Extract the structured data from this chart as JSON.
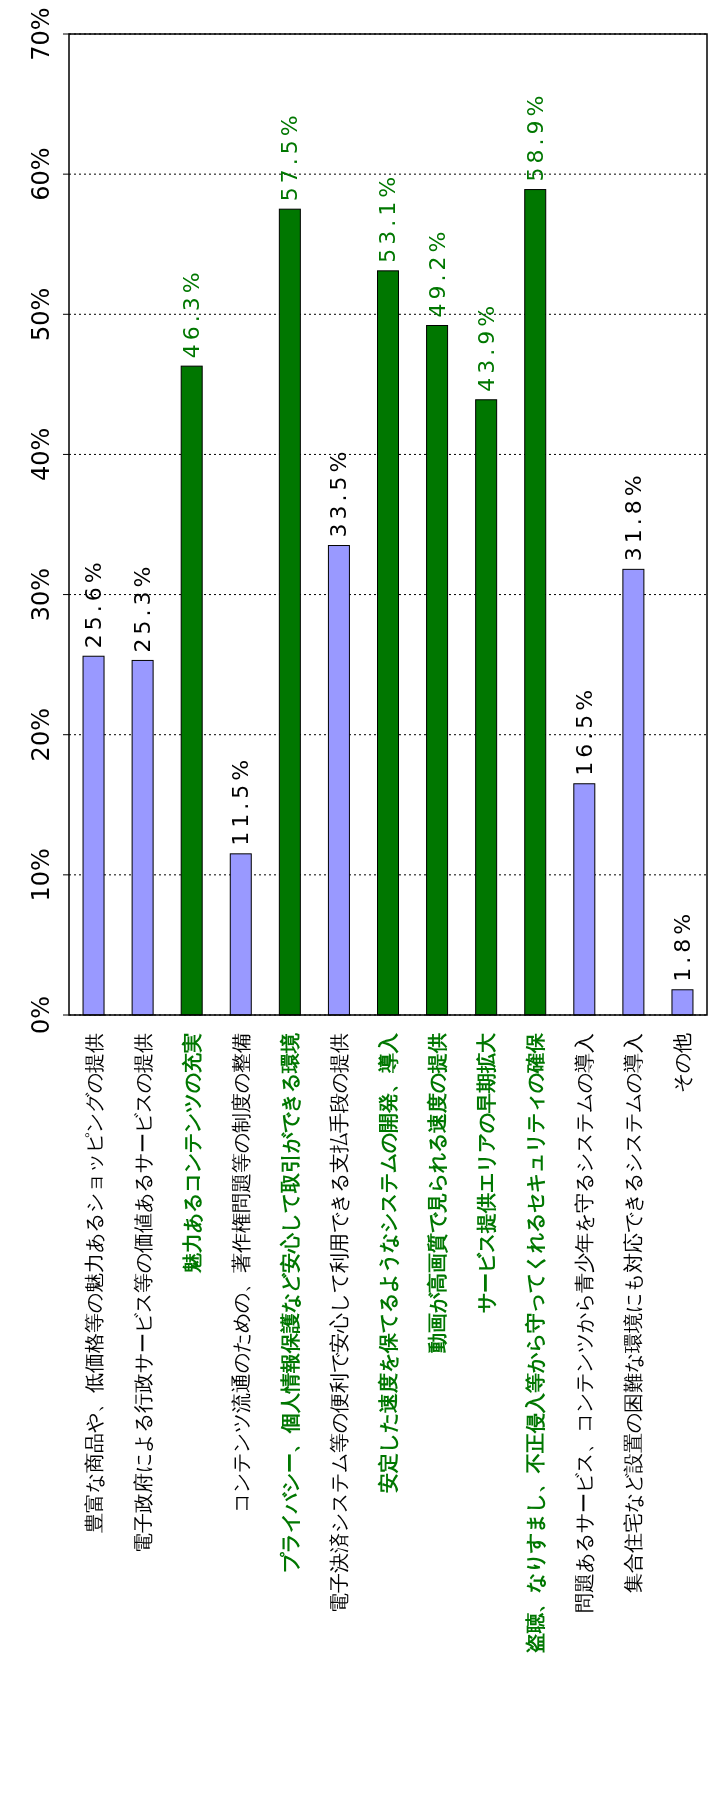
{
  "chart_data": {
    "type": "bar",
    "categories": [
      "豊富な商品や、低価格等の魅力あるショッピングの提供",
      "電子政府による行政サービス等の価値あるサービスの提供",
      "魅力あるコンテンツの充実",
      "コンテンツ流通のための、著作権問題等の制度の整備",
      "プライバシー、個人情報保護など安心して取引ができる環境",
      "電子決済システム等の便利で安心して利用できる支払手段の提供",
      "安定した速度を保てるようなシステムの開発、導入",
      "動画が高画質で見られる速度の提供",
      "サービス提供エリアの早期拡大",
      "盗聴、なりすまし、不正侵入等から守ってくれるセキュリティの確保",
      "問題あるサービス、コンテンツから青少年を守るシステムの導入",
      "集合住宅など設置の困難な環境にも対応できるシステムの導入",
      "その他"
    ],
    "values": [
      25.6,
      25.3,
      46.3,
      11.5,
      57.5,
      33.5,
      53.1,
      49.2,
      43.9,
      58.9,
      16.5,
      31.8,
      1.8
    ],
    "value_labels": [
      "25.6%",
      "25.3%",
      "46.3%",
      "11.5%",
      "57.5%",
      "33.5%",
      "53.1%",
      "49.2%",
      "43.9%",
      "58.9%",
      "16.5%",
      "31.8%",
      "1.8%"
    ],
    "colors": [
      "#9999ff",
      "#9999ff",
      "#007700",
      "#9999ff",
      "#007700",
      "#9999ff",
      "#007700",
      "#007700",
      "#007700",
      "#007700",
      "#9999ff",
      "#9999ff",
      "#9999ff"
    ],
    "ylim": [
      0,
      70
    ],
    "yticks": [
      {
        "value": 0,
        "label": "0%"
      },
      {
        "value": 10,
        "label": "10%"
      },
      {
        "value": 20,
        "label": "20%"
      },
      {
        "value": 30,
        "label": "30%"
      },
      {
        "value": 40,
        "label": "40%"
      },
      {
        "value": 50,
        "label": "50%"
      },
      {
        "value": 60,
        "label": "60%"
      },
      {
        "value": 70,
        "label": "70%"
      }
    ],
    "grid": "y"
  }
}
